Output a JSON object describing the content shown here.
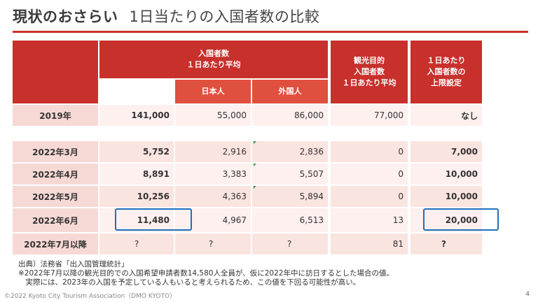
{
  "title": {
    "main": "現状のおさらい",
    "sub": "1日当たりの入国者数の比較"
  },
  "headers": {
    "group_total": "入国者数\n１日あたり平均",
    "japanese": "日本人",
    "foreign": "外国人",
    "tourism": "観光目的\n入国者数\n１日あたり平均",
    "cap": "１日あたり\n入国者数の\n上限設定"
  },
  "rows": [
    {
      "label": "2019年",
      "total": "141,000",
      "japanese": "55,000",
      "foreign": "86,000",
      "tourism": "77,000",
      "cap": "なし"
    },
    {
      "label": "2022年3月",
      "total": "5,752",
      "japanese": "2,916",
      "foreign": "2,836",
      "tourism": "0",
      "cap": "7,000"
    },
    {
      "label": "2022年4月",
      "total": "8,891",
      "japanese": "3,383",
      "foreign": "5,507",
      "tourism": "0",
      "cap": "10,000"
    },
    {
      "label": "2022年5月",
      "total": "10,256",
      "japanese": "4,363",
      "foreign": "5,894",
      "tourism": "0",
      "cap": "10,000"
    },
    {
      "label": "2022年6月",
      "total": "11,480",
      "japanese": "4,967",
      "foreign": "6,513",
      "tourism": "13",
      "cap": "20,000"
    },
    {
      "label": "2022年7月以降",
      "total": "?",
      "japanese": "?",
      "foreign": "?",
      "tourism": "81",
      "cap": "?"
    }
  ],
  "notes": [
    "出典）法務省「出入国管理統計」",
    "※2022年7月以降の観光目的での入国希望申請者数14,580人全員が、仮に2022年中に訪日するとした場合の値。",
    "　実際には、2023年の入国を予定している人もいると考えられるため、この値を下回る可能性が高い。"
  ],
  "footer": "©2022 Kyoto City Tourism Association（DMO KYOTO）",
  "page_number": "4",
  "colors": {
    "header": "#c8302c",
    "subheader": "#e0503e",
    "label_bg": "#f6d9d4",
    "value_bg": "#fdf0ee",
    "highlight": "#1f6fbf"
  }
}
